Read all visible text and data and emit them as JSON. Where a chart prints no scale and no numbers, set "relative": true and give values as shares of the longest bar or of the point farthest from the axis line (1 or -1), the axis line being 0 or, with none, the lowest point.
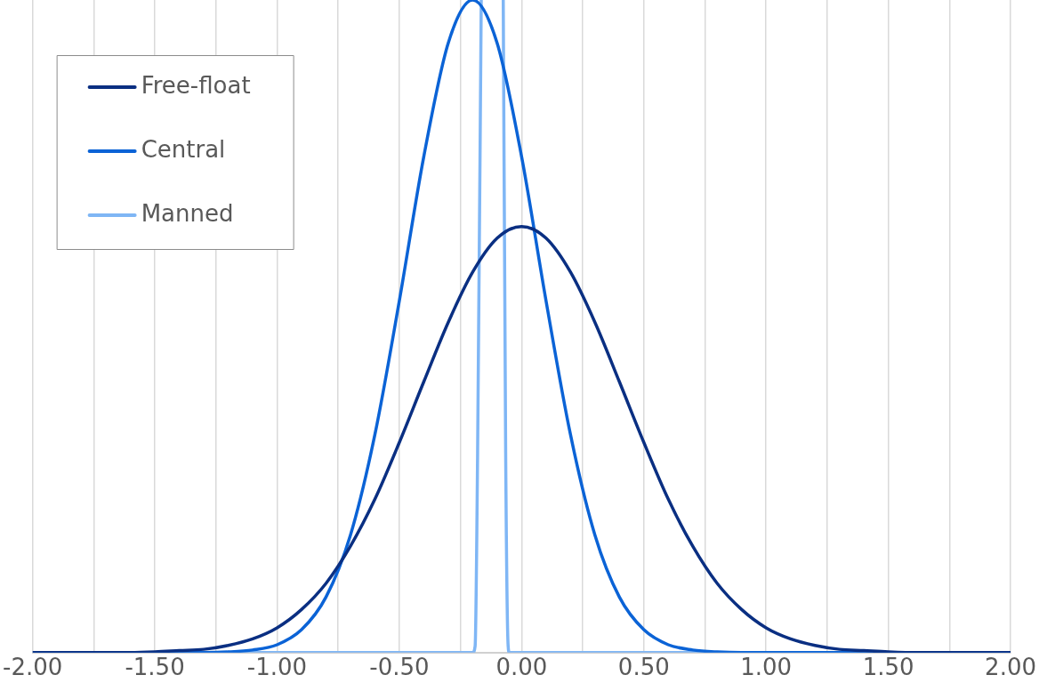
{
  "chart_data": {
    "type": "line",
    "relative": true,
    "grid": "x",
    "legend": "top left",
    "marker": "none",
    "line_style": "solid",
    "xlim": [
      -2,
      2
    ],
    "xticks": [
      {
        "value": -2,
        "label": "-2.00"
      },
      {
        "value": -1.75,
        "label": null
      },
      {
        "value": -1.5,
        "label": "-1.50"
      },
      {
        "value": -1.25,
        "label": null
      },
      {
        "value": -1,
        "label": "-1.00"
      },
      {
        "value": -0.75,
        "label": null
      },
      {
        "value": -0.5,
        "label": "-0.50"
      },
      {
        "value": -0.25,
        "label": null
      },
      {
        "value": 0,
        "label": "0.00"
      },
      {
        "value": 0.25,
        "label": null
      },
      {
        "value": 0.5,
        "label": "0.50"
      },
      {
        "value": 0.75,
        "label": null
      },
      {
        "value": 1,
        "label": "1.00"
      },
      {
        "value": 1.25,
        "label": null
      },
      {
        "value": 1.5,
        "label": "1.50"
      },
      {
        "value": 1.75,
        "label": null
      },
      {
        "value": 2,
        "label": "2.00"
      }
    ],
    "series": [
      {
        "name": "Free-float",
        "color": "#0a2f82",
        "x": [
          -2,
          -1.6,
          -1.5,
          -1.4,
          -1.3,
          -1.2,
          -1.1,
          -1,
          -0.9,
          -0.8,
          -0.7,
          -0.6,
          -0.5,
          -0.4,
          -0.3,
          -0.2,
          -0.1,
          0,
          0.1,
          0.2,
          0.3,
          0.4,
          0.5,
          0.6,
          0.7,
          0.8,
          0.9,
          1,
          1.1,
          1.2,
          1.3,
          1.4,
          1.5,
          1.6,
          2
        ],
        "values": [
          0,
          0,
          0.001,
          0.003,
          0.005,
          0.011,
          0.021,
          0.038,
          0.066,
          0.106,
          0.163,
          0.235,
          0.322,
          0.415,
          0.506,
          0.583,
          0.635,
          0.653,
          0.635,
          0.583,
          0.506,
          0.415,
          0.322,
          0.235,
          0.163,
          0.106,
          0.066,
          0.038,
          0.021,
          0.011,
          0.005,
          0.003,
          0.001,
          0,
          0
        ]
      },
      {
        "name": "Central",
        "color": "#0b63d6",
        "x": [
          -2,
          -1.3,
          -1.2,
          -1.1,
          -1,
          -0.9,
          -0.8,
          -0.7,
          -0.6,
          -0.5,
          -0.4,
          -0.3,
          -0.2,
          -0.1,
          0,
          0.1,
          0.2,
          0.3,
          0.4,
          0.5,
          0.6,
          0.7,
          0.8,
          0.9,
          2
        ],
        "values": [
          0,
          0,
          0.001,
          0.004,
          0.012,
          0.035,
          0.085,
          0.18,
          0.334,
          0.539,
          0.76,
          0.934,
          1,
          0.934,
          0.76,
          0.539,
          0.334,
          0.18,
          0.085,
          0.035,
          0.012,
          0.004,
          0.001,
          0,
          0
        ]
      },
      {
        "name": "Manned",
        "color": "#7fb6f5",
        "x": [
          -2,
          -0.2,
          -0.19,
          -0.18,
          -0.165,
          -0.12,
          -0.075,
          -0.065,
          -0.055,
          -0.05,
          2
        ],
        "values": [
          0,
          0,
          0.01,
          0.3,
          1,
          null,
          1,
          0.3,
          0.01,
          0,
          0
        ]
      }
    ]
  }
}
